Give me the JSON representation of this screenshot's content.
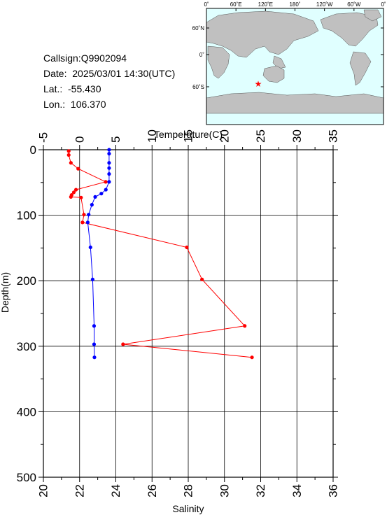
{
  "info": {
    "callsign": "Callsign:Q9902094",
    "date": "Date:  2025/03/01 14:30(UTC)",
    "lat": "Lat.:  -55.430",
    "lon": "Lon.:  106.370"
  },
  "map": {
    "top_labels": [
      "0˚",
      "60˚E",
      "120˚E",
      "180˚",
      "120˚W",
      "60˚W",
      "0˚"
    ],
    "lat_labels": [
      "60˚N",
      "0˚",
      "60˚S"
    ],
    "colors": {
      "land": "#c0c0c0",
      "ocean": "#e0ffff",
      "marker": "#ff0000"
    }
  },
  "chart_data": {
    "type": "line",
    "top_axis": {
      "label": "Temperature(C)",
      "range": [
        -5,
        35
      ],
      "ticks": [
        "-5",
        "0",
        "5",
        "10",
        "15",
        "20",
        "25",
        "30",
        "35"
      ]
    },
    "bottom_axis": {
      "label": "Salinity",
      "range": [
        20,
        36
      ],
      "ticks": [
        "20",
        "22",
        "24",
        "26",
        "28",
        "30",
        "32",
        "34",
        "36"
      ]
    },
    "y_axis": {
      "label": "Depth(m)",
      "range": [
        0,
        500
      ],
      "inverted": true,
      "ticks": [
        "0",
        "100",
        "200",
        "300",
        "400",
        "500"
      ]
    },
    "grid": true,
    "series": [
      {
        "axis": "top",
        "color": "#ff0000",
        "points": [
          [
            -1.5,
            2
          ],
          [
            -1.5,
            8
          ],
          [
            -1.2,
            20
          ],
          [
            -0.2,
            29
          ],
          [
            3.6,
            49
          ],
          [
            -0.5,
            61
          ],
          [
            -0.8,
            65
          ],
          [
            -1.1,
            69
          ],
          [
            -1.2,
            72
          ],
          [
            0.2,
            73
          ],
          [
            0.6,
            99
          ],
          [
            0.4,
            111
          ],
          [
            14.8,
            149
          ],
          [
            16.9,
            198
          ],
          [
            22.8,
            269
          ],
          [
            6.0,
            297
          ],
          [
            23.8,
            317
          ]
        ]
      },
      {
        "axis": "bottom",
        "color": "#0000ff",
        "points": [
          [
            23.63,
            0
          ],
          [
            23.63,
            6
          ],
          [
            23.63,
            20
          ],
          [
            23.63,
            28
          ],
          [
            23.63,
            37
          ],
          [
            23.63,
            49
          ],
          [
            23.45,
            61
          ],
          [
            23.2,
            67
          ],
          [
            22.86,
            72
          ],
          [
            22.68,
            84
          ],
          [
            22.5,
            99
          ],
          [
            22.45,
            111
          ],
          [
            22.6,
            149
          ],
          [
            22.72,
            198
          ],
          [
            22.8,
            269
          ],
          [
            22.8,
            297
          ],
          [
            22.82,
            317
          ]
        ]
      }
    ]
  }
}
